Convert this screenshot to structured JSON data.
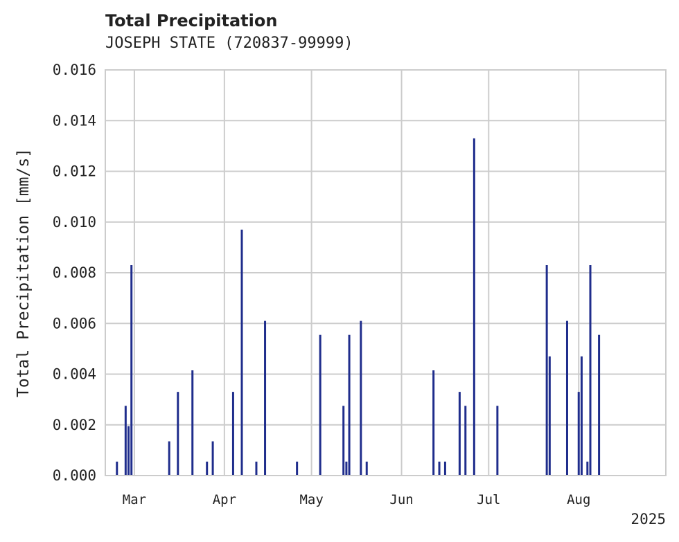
{
  "chart_data": {
    "type": "bar",
    "title": "Total Precipitation",
    "subtitle": "JOSEPH STATE (720837-99999)",
    "ylabel": "Total Precipitation [mm/s]",
    "xlabel": "",
    "x_date_range": [
      "2025-02-19",
      "2025-08-31"
    ],
    "ylim": [
      0,
      0.016
    ],
    "yticks": [
      "0.000",
      "0.002",
      "0.004",
      "0.006",
      "0.008",
      "0.010",
      "0.012",
      "0.014",
      "0.016"
    ],
    "xticks": [
      {
        "date": "2025-03-01",
        "label": "Mar"
      },
      {
        "date": "2025-04-01",
        "label": "Apr"
      },
      {
        "date": "2025-05-01",
        "label": "May"
      },
      {
        "date": "2025-06-01",
        "label": "Jun"
      },
      {
        "date": "2025-07-01",
        "label": "Jul"
      },
      {
        "date": "2025-08-01",
        "label": "Aug"
      }
    ],
    "year_label": "2025",
    "grid": true,
    "bar_color": "#1f2d8c",
    "points": [
      {
        "x": "2025-02-23",
        "y": 0.00055
      },
      {
        "x": "2025-02-26",
        "y": 0.00275
      },
      {
        "x": "2025-02-27",
        "y": 0.00195
      },
      {
        "x": "2025-02-28",
        "y": 0.0083
      },
      {
        "x": "2025-03-13",
        "y": 0.00135
      },
      {
        "x": "2025-03-16",
        "y": 0.0033
      },
      {
        "x": "2025-03-21",
        "y": 0.00415
      },
      {
        "x": "2025-03-26",
        "y": 0.00055
      },
      {
        "x": "2025-03-28",
        "y": 0.00135
      },
      {
        "x": "2025-04-04",
        "y": 0.0033
      },
      {
        "x": "2025-04-07",
        "y": 0.0097
      },
      {
        "x": "2025-04-12",
        "y": 0.00055
      },
      {
        "x": "2025-04-15",
        "y": 0.0061
      },
      {
        "x": "2025-04-26",
        "y": 0.00055
      },
      {
        "x": "2025-05-04",
        "y": 0.00555
      },
      {
        "x": "2025-05-12",
        "y": 0.00275
      },
      {
        "x": "2025-05-13",
        "y": 0.00055
      },
      {
        "x": "2025-05-14",
        "y": 0.00555
      },
      {
        "x": "2025-05-18",
        "y": 0.0061
      },
      {
        "x": "2025-05-20",
        "y": 0.00055
      },
      {
        "x": "2025-06-12",
        "y": 0.00415
      },
      {
        "x": "2025-06-14",
        "y": 0.00055
      },
      {
        "x": "2025-06-16",
        "y": 0.00055
      },
      {
        "x": "2025-06-21",
        "y": 0.0033
      },
      {
        "x": "2025-06-23",
        "y": 0.00275
      },
      {
        "x": "2025-06-26",
        "y": 0.0133
      },
      {
        "x": "2025-07-04",
        "y": 0.00275
      },
      {
        "x": "2025-07-21",
        "y": 0.0083
      },
      {
        "x": "2025-07-22",
        "y": 0.0047
      },
      {
        "x": "2025-07-28",
        "y": 0.0061
      },
      {
        "x": "2025-08-01",
        "y": 0.0033
      },
      {
        "x": "2025-08-02",
        "y": 0.0047
      },
      {
        "x": "2025-08-04",
        "y": 0.00055
      },
      {
        "x": "2025-08-05",
        "y": 0.0083
      },
      {
        "x": "2025-08-08",
        "y": 0.00555
      }
    ]
  }
}
